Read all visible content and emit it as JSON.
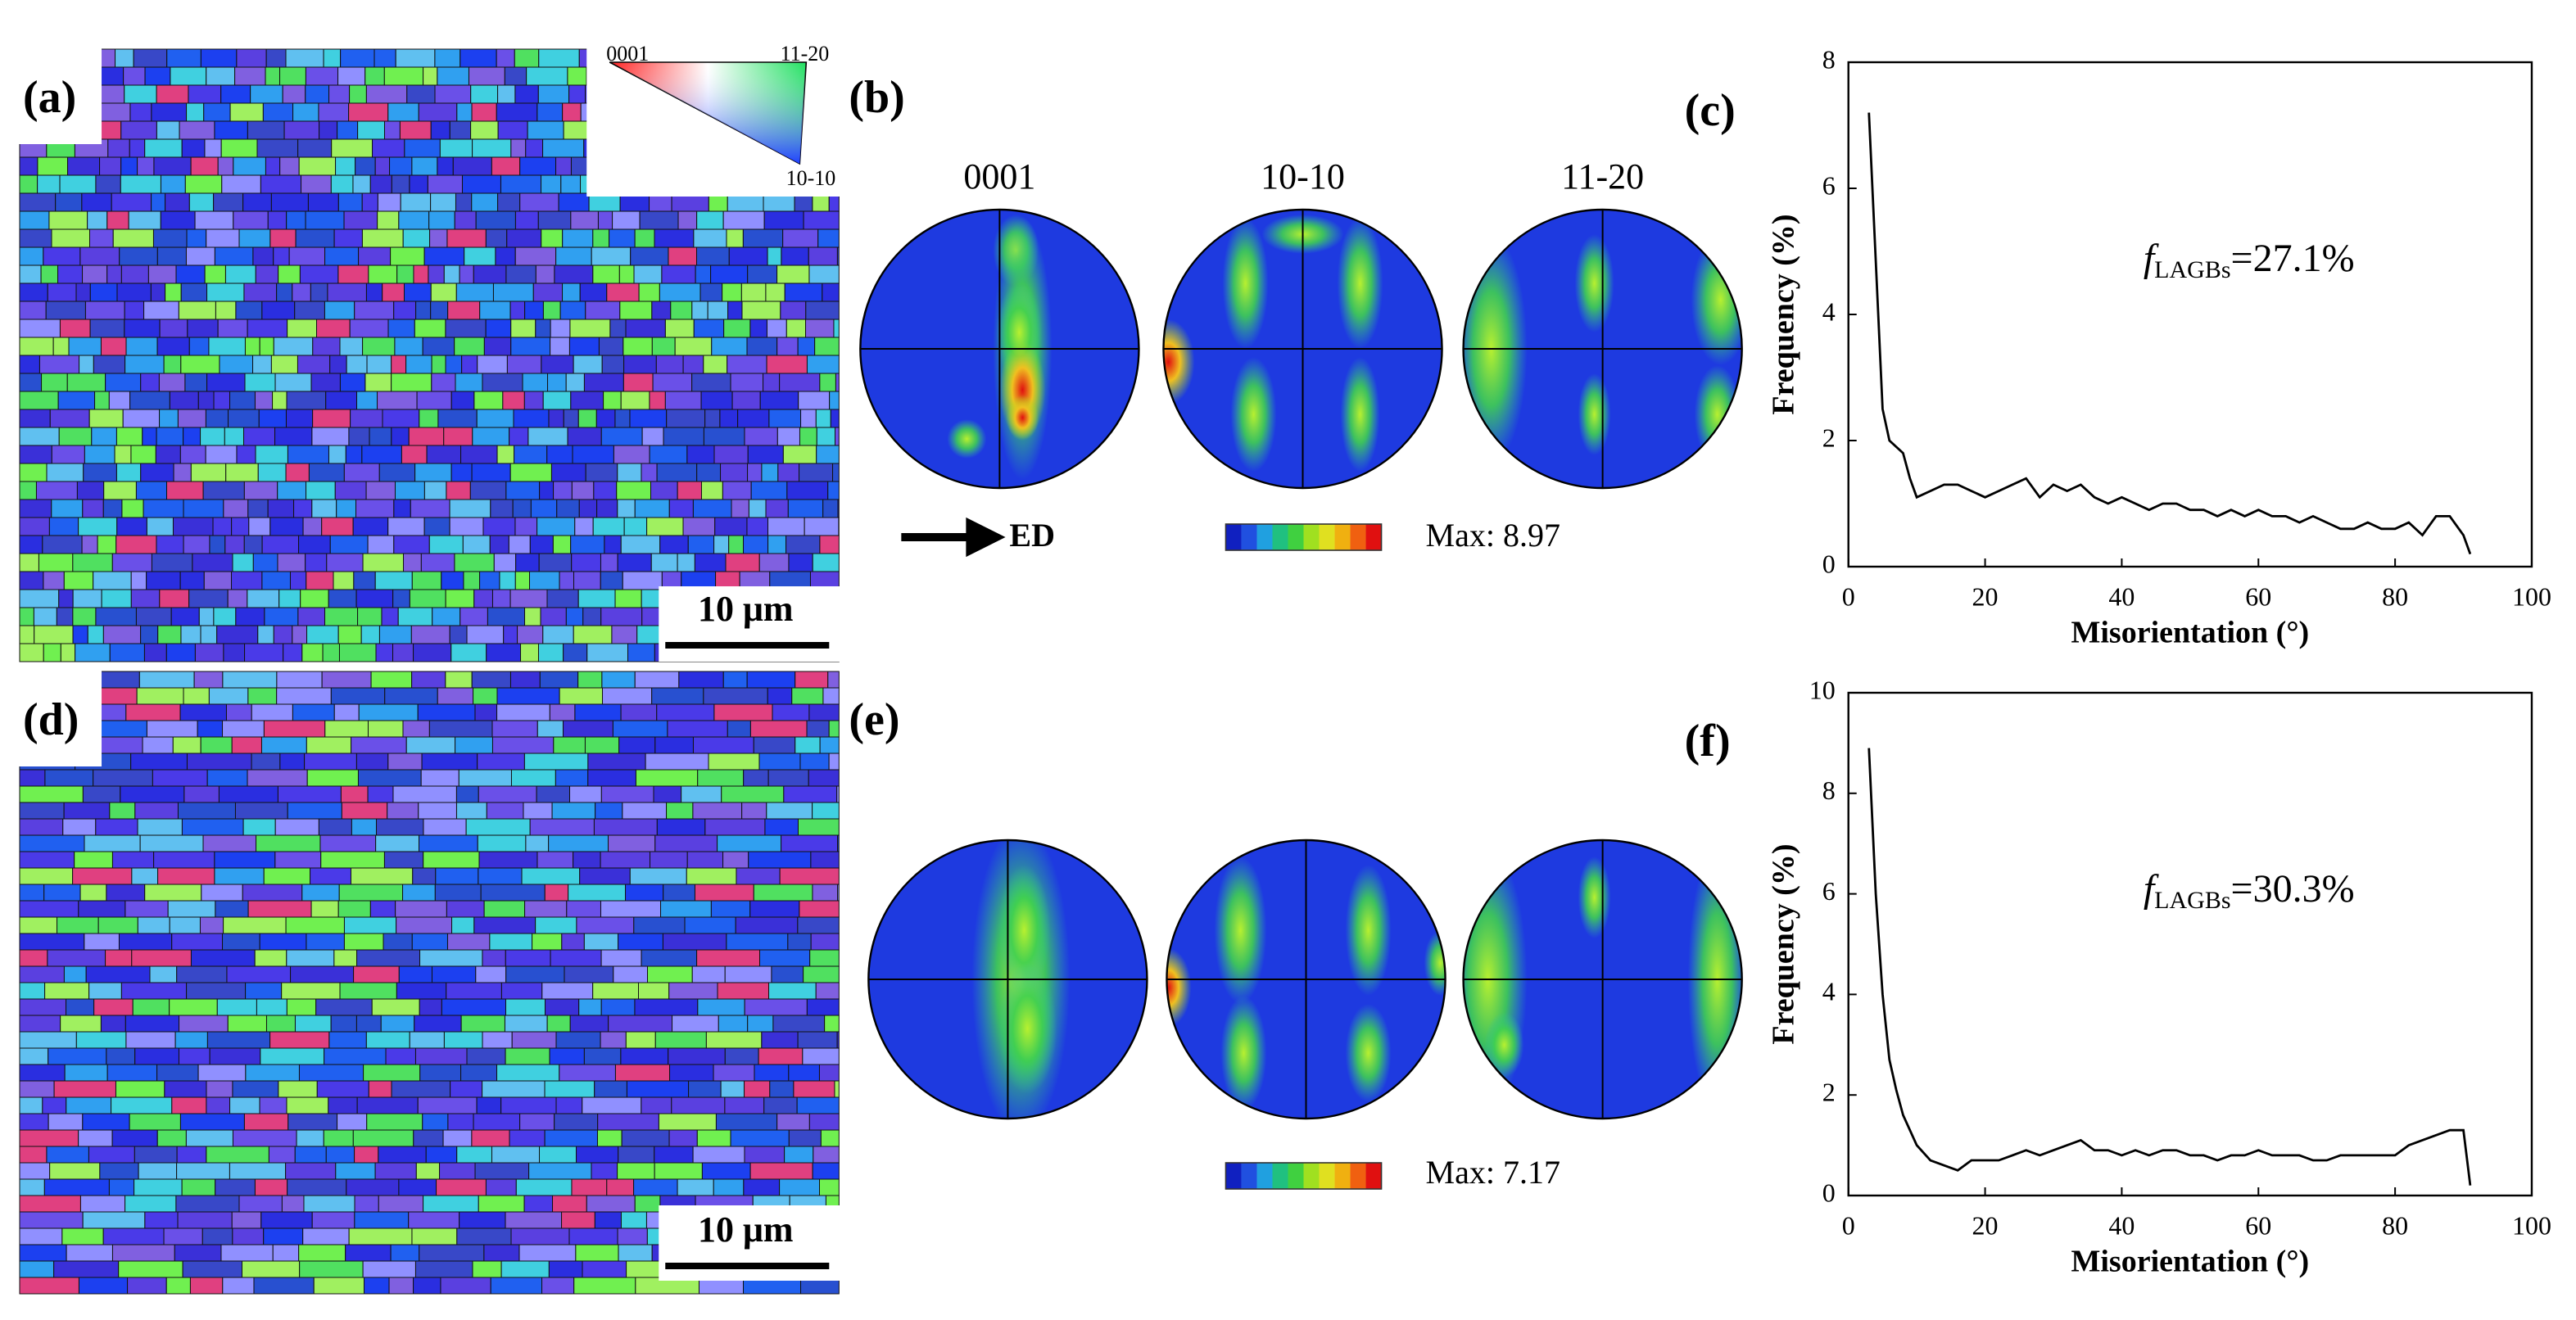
{
  "panels": {
    "a": {
      "label": "(a)",
      "scale_bar": "10 μm",
      "ipf_labels": [
        "0001",
        "11-20",
        "10-10"
      ]
    },
    "b": {
      "label": "(b)",
      "pole_figures": [
        "0001",
        "10-10",
        "11-20"
      ],
      "direction": "ED",
      "max": "Max: 8.97"
    },
    "d": {
      "label": "(d)",
      "scale_bar": "10 μm"
    },
    "e": {
      "label": "(e)",
      "max": "Max: 7.17"
    }
  },
  "chart_data": [
    {
      "type": "line",
      "panel_label": "(c)",
      "xlabel": "Misorientation (°)",
      "ylabel": "Frequency (%)",
      "annotation": {
        "symbol": "f",
        "subscript": "LAGBs",
        "text": "=27.1%"
      },
      "x": [
        3,
        5,
        6,
        8,
        9,
        10,
        12,
        14,
        16,
        18,
        20,
        22,
        24,
        26,
        28,
        30,
        32,
        34,
        36,
        38,
        40,
        42,
        44,
        46,
        48,
        50,
        52,
        54,
        56,
        58,
        60,
        62,
        64,
        66,
        68,
        70,
        72,
        74,
        76,
        78,
        80,
        82,
        84,
        86,
        88,
        90,
        91
      ],
      "values": [
        7.2,
        2.5,
        2.0,
        1.8,
        1.4,
        1.1,
        1.2,
        1.3,
        1.3,
        1.2,
        1.1,
        1.2,
        1.3,
        1.4,
        1.1,
        1.3,
        1.2,
        1.3,
        1.1,
        1.0,
        1.1,
        1.0,
        0.9,
        1.0,
        1.0,
        0.9,
        0.9,
        0.8,
        0.9,
        0.8,
        0.9,
        0.8,
        0.8,
        0.7,
        0.8,
        0.7,
        0.6,
        0.6,
        0.7,
        0.6,
        0.6,
        0.7,
        0.5,
        0.8,
        0.8,
        0.5,
        0.2
      ],
      "color": "#000000",
      "xlim": [
        0,
        100
      ],
      "xticks": [
        0,
        20,
        40,
        60,
        80,
        100
      ],
      "ylim": [
        0,
        8
      ],
      "yticks": [
        0,
        2,
        4,
        6,
        8
      ]
    },
    {
      "type": "line",
      "panel_label": "(f)",
      "xlabel": "Misorientation (°)",
      "ylabel": "Frequency (%)",
      "annotation": {
        "symbol": "f",
        "subscript": "LAGBs",
        "text": "=30.3%"
      },
      "x": [
        3,
        4,
        5,
        6,
        7,
        8,
        10,
        12,
        14,
        16,
        18,
        20,
        22,
        24,
        26,
        28,
        30,
        32,
        34,
        36,
        38,
        40,
        42,
        44,
        46,
        48,
        50,
        52,
        54,
        56,
        58,
        60,
        62,
        64,
        66,
        68,
        70,
        72,
        74,
        76,
        78,
        80,
        82,
        84,
        86,
        88,
        90,
        91
      ],
      "values": [
        8.9,
        6.0,
        4.0,
        2.7,
        2.1,
        1.6,
        1.0,
        0.7,
        0.6,
        0.5,
        0.7,
        0.7,
        0.7,
        0.8,
        0.9,
        0.8,
        0.9,
        1.0,
        1.1,
        0.9,
        0.9,
        0.8,
        0.9,
        0.8,
        0.9,
        0.9,
        0.8,
        0.8,
        0.7,
        0.8,
        0.8,
        0.9,
        0.8,
        0.8,
        0.8,
        0.7,
        0.7,
        0.8,
        0.8,
        0.8,
        0.8,
        0.8,
        1.0,
        1.1,
        1.2,
        1.3,
        1.3,
        0.2
      ],
      "color": "#000000",
      "xlim": [
        0,
        100
      ],
      "xticks": [
        0,
        20,
        40,
        60,
        80,
        100
      ],
      "ylim": [
        0,
        10
      ],
      "yticks": [
        0,
        2,
        4,
        6,
        8,
        10
      ]
    }
  ]
}
